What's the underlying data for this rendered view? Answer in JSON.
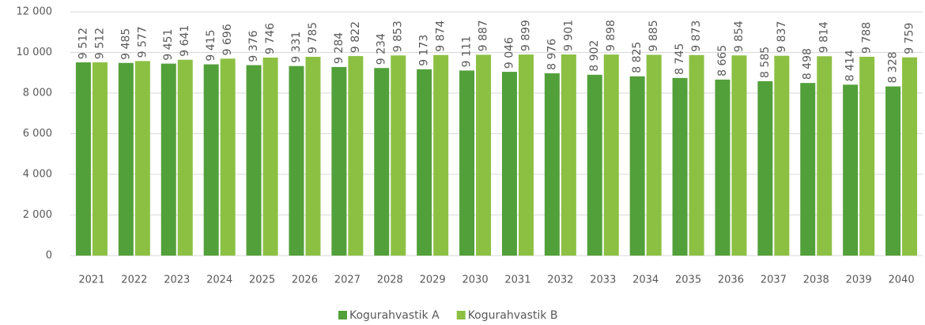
{
  "chart_data": {
    "type": "bar",
    "categories": [
      "2021",
      "2022",
      "2023",
      "2024",
      "2025",
      "2026",
      "2027",
      "2028",
      "2029",
      "2030",
      "2031",
      "2032",
      "2033",
      "2034",
      "2035",
      "2036",
      "2037",
      "2038",
      "2039",
      "2040"
    ],
    "series": [
      {
        "name": "Kogurahvastik A",
        "color": "#52a03a",
        "values": [
          9512,
          9485,
          9451,
          9415,
          9376,
          9331,
          9284,
          9234,
          9173,
          9111,
          9046,
          8976,
          8902,
          8825,
          8745,
          8665,
          8585,
          8498,
          8414,
          8328
        ],
        "value_labels": [
          "9 512",
          "9 485",
          "9 451",
          "9 415",
          "9 376",
          "9 331",
          "9 284",
          "9 234",
          "9 173",
          "9 111",
          "9 046",
          "8 976",
          "8 902",
          "8 825",
          "8 745",
          "8 665",
          "8 585",
          "8 498",
          "8 414",
          "8 328"
        ]
      },
      {
        "name": "Kogurahvastik B",
        "color": "#8cc043",
        "values": [
          9512,
          9577,
          9641,
          9696,
          9746,
          9785,
          9822,
          9853,
          9874,
          9887,
          9899,
          9901,
          9898,
          9885,
          9873,
          9854,
          9837,
          9814,
          9788,
          9759
        ],
        "value_labels": [
          "9 512",
          "9 577",
          "9 641",
          "9 696",
          "9 746",
          "9 785",
          "9 822",
          "9 853",
          "9 874",
          "9 887",
          "9 899",
          "9 901",
          "9 898",
          "9 885",
          "9 873",
          "9 854",
          "9 837",
          "9 814",
          "9 788",
          "9 759"
        ]
      }
    ],
    "ylim": [
      0,
      12000
    ],
    "yticks": [
      0,
      {
        "value": 2000,
        "label": "2 000"
      },
      {
        "value": 4000,
        "label": "4 000"
      },
      {
        "value": 6000,
        "label": "6 000"
      },
      {
        "value": 8000,
        "label": "8 000"
      },
      {
        "value": 10000,
        "label": "10 000"
      },
      {
        "value": 12000,
        "label": "12 000"
      }
    ],
    "grid": true,
    "legend": "bottom"
  }
}
